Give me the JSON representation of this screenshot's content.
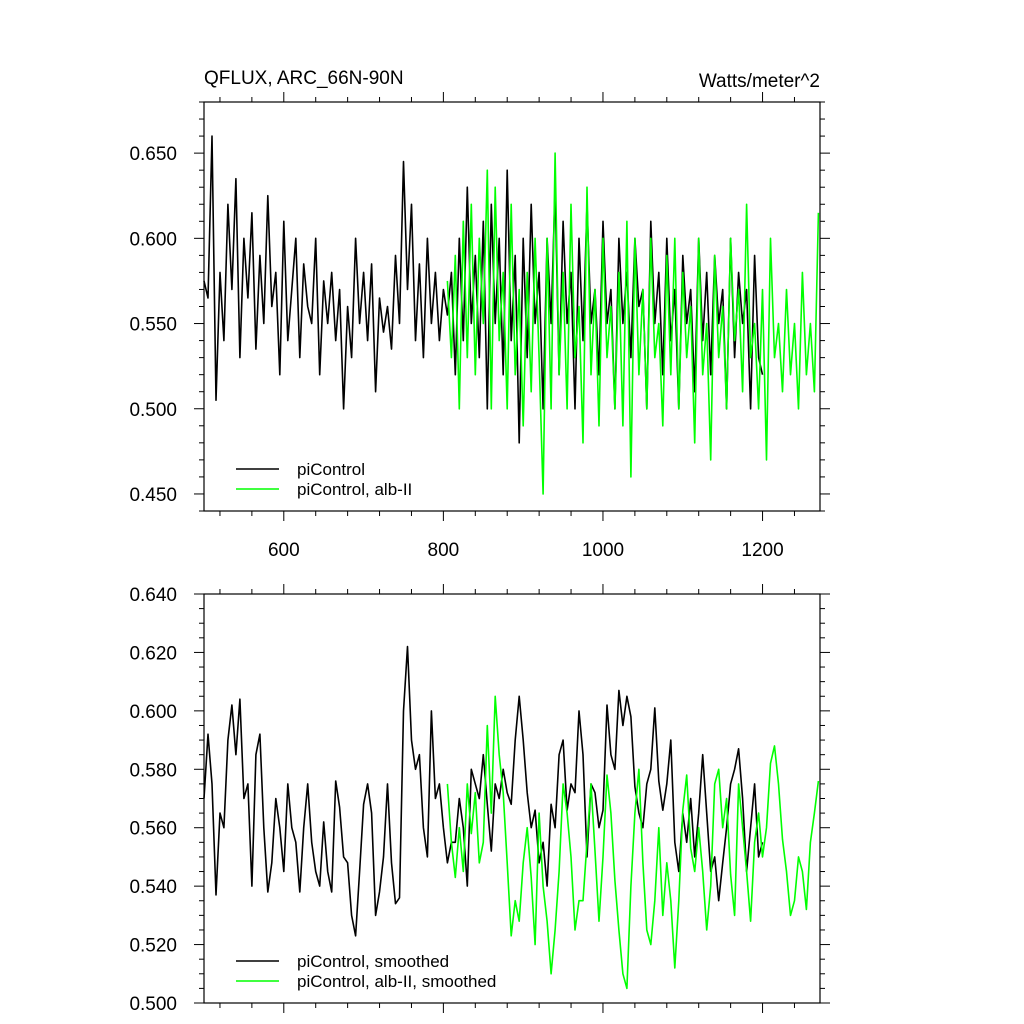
{
  "chart_data": [
    {
      "type": "line",
      "title": "QFLUX, ARC_66N-90N",
      "units": "Watts/meter^2",
      "xlim": [
        500,
        1272
      ],
      "ylim": [
        0.44,
        0.68
      ],
      "x_ticks": [
        600,
        800,
        1000,
        1200
      ],
      "x_tick_labels": [
        "600",
        "800",
        "1000",
        "1200"
      ],
      "y_ticks": [
        0.45,
        0.5,
        0.55,
        0.6,
        0.65
      ],
      "y_tick_labels": [
        "0.450",
        "0.500",
        "0.550",
        "0.600",
        "0.650"
      ],
      "legend_position": "bottom-left",
      "series": [
        {
          "name": "piControl",
          "color": "#000000",
          "x": [
            500,
            505,
            510,
            515,
            520,
            525,
            530,
            535,
            540,
            545,
            550,
            555,
            560,
            565,
            570,
            575,
            580,
            585,
            590,
            595,
            600,
            605,
            610,
            615,
            620,
            625,
            630,
            635,
            640,
            645,
            650,
            655,
            660,
            665,
            670,
            675,
            680,
            685,
            690,
            695,
            700,
            705,
            710,
            715,
            720,
            725,
            730,
            735,
            740,
            745,
            750,
            755,
            760,
            765,
            770,
            775,
            780,
            785,
            790,
            795,
            800,
            805,
            810,
            815,
            820,
            825,
            830,
            835,
            840,
            845,
            850,
            855,
            860,
            865,
            870,
            875,
            880,
            885,
            890,
            895,
            900,
            905,
            910,
            915,
            920,
            925,
            930,
            935,
            940,
            945,
            950,
            955,
            960,
            965,
            970,
            975,
            980,
            985,
            990,
            995,
            1000,
            1005,
            1010,
            1015,
            1020,
            1025,
            1030,
            1035,
            1040,
            1045,
            1050,
            1055,
            1060,
            1065,
            1070,
            1075,
            1080,
            1085,
            1090,
            1095,
            1100,
            1105,
            1110,
            1115,
            1120,
            1125,
            1130,
            1135,
            1140,
            1145,
            1150,
            1155,
            1160,
            1165,
            1170,
            1175,
            1180,
            1185,
            1190,
            1195,
            1200
          ],
          "y": [
            0.575,
            0.565,
            0.66,
            0.505,
            0.58,
            0.54,
            0.62,
            0.57,
            0.635,
            0.53,
            0.6,
            0.565,
            0.615,
            0.535,
            0.59,
            0.55,
            0.625,
            0.56,
            0.58,
            0.52,
            0.61,
            0.54,
            0.57,
            0.6,
            0.53,
            0.585,
            0.56,
            0.55,
            0.6,
            0.52,
            0.575,
            0.55,
            0.58,
            0.54,
            0.57,
            0.5,
            0.56,
            0.53,
            0.6,
            0.55,
            0.58,
            0.54,
            0.585,
            0.51,
            0.565,
            0.545,
            0.56,
            0.535,
            0.59,
            0.55,
            0.645,
            0.57,
            0.62,
            0.54,
            0.585,
            0.53,
            0.6,
            0.55,
            0.58,
            0.54,
            0.57,
            0.555,
            0.58,
            0.52,
            0.6,
            0.54,
            0.63,
            0.55,
            0.59,
            0.53,
            0.61,
            0.5,
            0.62,
            0.55,
            0.6,
            0.52,
            0.64,
            0.54,
            0.59,
            0.48,
            0.6,
            0.53,
            0.62,
            0.55,
            0.58,
            0.5,
            0.6,
            0.55,
            0.63,
            0.52,
            0.61,
            0.55,
            0.58,
            0.5,
            0.6,
            0.54,
            0.62,
            0.55,
            0.57,
            0.52,
            0.61,
            0.55,
            0.57,
            0.5,
            0.6,
            0.55,
            0.58,
            0.53,
            0.6,
            0.56,
            0.57,
            0.5,
            0.61,
            0.55,
            0.58,
            0.52,
            0.6,
            0.54,
            0.57,
            0.5,
            0.59,
            0.55,
            0.57,
            0.51,
            0.6,
            0.54,
            0.58,
            0.52,
            0.59,
            0.55,
            0.57,
            0.5,
            0.6,
            0.53,
            0.58,
            0.55,
            0.57,
            0.5,
            0.59,
            0.53,
            0.52
          ]
        },
        {
          "name": "piControl, alb-II",
          "color": "#00ff00",
          "x": [
            805,
            810,
            815,
            820,
            825,
            830,
            835,
            840,
            845,
            850,
            855,
            860,
            865,
            870,
            875,
            880,
            885,
            890,
            895,
            900,
            905,
            910,
            915,
            920,
            925,
            930,
            935,
            940,
            945,
            950,
            955,
            960,
            965,
            970,
            975,
            980,
            985,
            990,
            995,
            1000,
            1005,
            1010,
            1015,
            1020,
            1025,
            1030,
            1035,
            1040,
            1045,
            1050,
            1055,
            1060,
            1065,
            1070,
            1075,
            1080,
            1085,
            1090,
            1095,
            1100,
            1105,
            1110,
            1115,
            1120,
            1125,
            1130,
            1135,
            1140,
            1145,
            1150,
            1155,
            1160,
            1165,
            1170,
            1175,
            1180,
            1185,
            1190,
            1195,
            1200,
            1205,
            1210,
            1215,
            1220,
            1225,
            1230,
            1235,
            1240,
            1245,
            1250,
            1255,
            1260,
            1265,
            1270
          ],
          "y": [
            0.575,
            0.53,
            0.59,
            0.5,
            0.61,
            0.53,
            0.62,
            0.52,
            0.6,
            0.55,
            0.64,
            0.5,
            0.63,
            0.54,
            0.58,
            0.5,
            0.62,
            0.52,
            0.57,
            0.49,
            0.58,
            0.51,
            0.6,
            0.53,
            0.45,
            0.6,
            0.5,
            0.65,
            0.52,
            0.58,
            0.5,
            0.62,
            0.53,
            0.56,
            0.48,
            0.63,
            0.52,
            0.57,
            0.49,
            0.6,
            0.53,
            0.56,
            0.5,
            0.58,
            0.49,
            0.61,
            0.46,
            0.6,
            0.52,
            0.57,
            0.5,
            0.6,
            0.53,
            0.55,
            0.49,
            0.59,
            0.52,
            0.6,
            0.5,
            0.58,
            0.53,
            0.56,
            0.48,
            0.6,
            0.52,
            0.55,
            0.47,
            0.59,
            0.53,
            0.56,
            0.5,
            0.6,
            0.54,
            0.57,
            0.51,
            0.62,
            0.53,
            0.55,
            0.5,
            0.57,
            0.47,
            0.6,
            0.53,
            0.55,
            0.51,
            0.57,
            0.52,
            0.55,
            0.5,
            0.58,
            0.52,
            0.55,
            0.51,
            0.615
          ]
        }
      ]
    },
    {
      "type": "line",
      "title": "",
      "xlim": [
        500,
        1272
      ],
      "ylim": [
        0.5,
        0.64
      ],
      "x_ticks": [
        600,
        800,
        1000,
        1200
      ],
      "x_tick_labels": [],
      "y_ticks": [
        0.5,
        0.52,
        0.54,
        0.56,
        0.58,
        0.6,
        0.62,
        0.64
      ],
      "y_tick_labels": [
        "0.500",
        "0.520",
        "0.540",
        "0.560",
        "0.580",
        "0.600",
        "0.620",
        "0.640"
      ],
      "legend_position": "bottom-left",
      "series": [
        {
          "name": "piControl, smoothed",
          "color": "#000000",
          "x": [
            500,
            505,
            510,
            515,
            520,
            525,
            530,
            535,
            540,
            545,
            550,
            555,
            560,
            565,
            570,
            575,
            580,
            585,
            590,
            595,
            600,
            605,
            610,
            615,
            620,
            625,
            630,
            635,
            640,
            645,
            650,
            655,
            660,
            665,
            670,
            675,
            680,
            685,
            690,
            695,
            700,
            705,
            710,
            715,
            720,
            725,
            730,
            735,
            740,
            745,
            750,
            755,
            760,
            765,
            770,
            775,
            780,
            785,
            790,
            795,
            800,
            805,
            810,
            815,
            820,
            825,
            830,
            835,
            840,
            845,
            850,
            855,
            860,
            865,
            870,
            875,
            880,
            885,
            890,
            895,
            900,
            905,
            910,
            915,
            920,
            925,
            930,
            935,
            940,
            945,
            950,
            955,
            960,
            965,
            970,
            975,
            980,
            985,
            990,
            995,
            1000,
            1005,
            1010,
            1015,
            1020,
            1025,
            1030,
            1035,
            1040,
            1045,
            1050,
            1055,
            1060,
            1065,
            1070,
            1075,
            1080,
            1085,
            1090,
            1095,
            1100,
            1105,
            1110,
            1115,
            1120,
            1125,
            1130,
            1135,
            1140,
            1145,
            1150,
            1155,
            1160,
            1165,
            1170,
            1175,
            1180,
            1185,
            1190,
            1195,
            1200
          ],
          "y": [
            0.57,
            0.592,
            0.575,
            0.537,
            0.565,
            0.56,
            0.59,
            0.602,
            0.585,
            0.604,
            0.57,
            0.575,
            0.54,
            0.585,
            0.592,
            0.56,
            0.538,
            0.548,
            0.57,
            0.56,
            0.545,
            0.575,
            0.56,
            0.555,
            0.538,
            0.56,
            0.575,
            0.555,
            0.545,
            0.54,
            0.562,
            0.545,
            0.538,
            0.576,
            0.567,
            0.55,
            0.548,
            0.53,
            0.523,
            0.545,
            0.568,
            0.575,
            0.565,
            0.53,
            0.538,
            0.55,
            0.575,
            0.548,
            0.534,
            0.536,
            0.6,
            0.622,
            0.59,
            0.58,
            0.585,
            0.56,
            0.55,
            0.6,
            0.57,
            0.575,
            0.56,
            0.548,
            0.555,
            0.555,
            0.57,
            0.56,
            0.54,
            0.58,
            0.575,
            0.57,
            0.585,
            0.568,
            0.552,
            0.575,
            0.57,
            0.58,
            0.572,
            0.568,
            0.59,
            0.605,
            0.59,
            0.572,
            0.56,
            0.566,
            0.548,
            0.555,
            0.54,
            0.568,
            0.56,
            0.585,
            0.59,
            0.566,
            0.575,
            0.572,
            0.6,
            0.585,
            0.55,
            0.575,
            0.572,
            0.56,
            0.566,
            0.602,
            0.585,
            0.58,
            0.607,
            0.595,
            0.605,
            0.598,
            0.574,
            0.565,
            0.56,
            0.575,
            0.58,
            0.601,
            0.576,
            0.566,
            0.575,
            0.59,
            0.555,
            0.545,
            0.565,
            0.555,
            0.57,
            0.55,
            0.565,
            0.585,
            0.565,
            0.545,
            0.55,
            0.535,
            0.548,
            0.56,
            0.575,
            0.58,
            0.587,
            0.57,
            0.545,
            0.56,
            0.575,
            0.55,
            0.555
          ]
        },
        {
          "name": "piControl, alb-II, smoothed",
          "color": "#00ff00",
          "x": [
            805,
            810,
            815,
            820,
            825,
            830,
            835,
            840,
            845,
            850,
            855,
            860,
            865,
            870,
            875,
            880,
            885,
            890,
            895,
            900,
            905,
            910,
            915,
            920,
            925,
            930,
            935,
            940,
            945,
            950,
            955,
            960,
            965,
            970,
            975,
            980,
            985,
            990,
            995,
            1000,
            1005,
            1010,
            1015,
            1020,
            1025,
            1030,
            1035,
            1040,
            1045,
            1050,
            1055,
            1060,
            1065,
            1070,
            1075,
            1080,
            1085,
            1090,
            1095,
            1100,
            1105,
            1110,
            1115,
            1120,
            1125,
            1130,
            1135,
            1140,
            1145,
            1150,
            1155,
            1160,
            1165,
            1170,
            1175,
            1180,
            1185,
            1190,
            1195,
            1200,
            1205,
            1210,
            1215,
            1220,
            1225,
            1230,
            1235,
            1240,
            1245,
            1250,
            1255,
            1260,
            1265,
            1270
          ],
          "y": [
            0.575,
            0.555,
            0.543,
            0.56,
            0.545,
            0.575,
            0.558,
            0.572,
            0.548,
            0.555,
            0.595,
            0.565,
            0.605,
            0.585,
            0.572,
            0.548,
            0.523,
            0.535,
            0.528,
            0.548,
            0.56,
            0.543,
            0.52,
            0.565,
            0.54,
            0.528,
            0.51,
            0.525,
            0.545,
            0.575,
            0.565,
            0.55,
            0.525,
            0.535,
            0.535,
            0.555,
            0.575,
            0.552,
            0.528,
            0.55,
            0.578,
            0.565,
            0.542,
            0.525,
            0.51,
            0.505,
            0.54,
            0.565,
            0.58,
            0.548,
            0.525,
            0.52,
            0.535,
            0.56,
            0.53,
            0.548,
            0.535,
            0.512,
            0.535,
            0.566,
            0.578,
            0.553,
            0.545,
            0.56,
            0.545,
            0.525,
            0.54,
            0.575,
            0.58,
            0.56,
            0.57,
            0.544,
            0.53,
            0.575,
            0.56,
            0.545,
            0.528,
            0.555,
            0.565,
            0.55,
            0.56,
            0.582,
            0.588,
            0.575,
            0.556,
            0.545,
            0.53,
            0.535,
            0.55,
            0.545,
            0.532,
            0.555,
            0.565,
            0.576
          ]
        }
      ]
    }
  ]
}
